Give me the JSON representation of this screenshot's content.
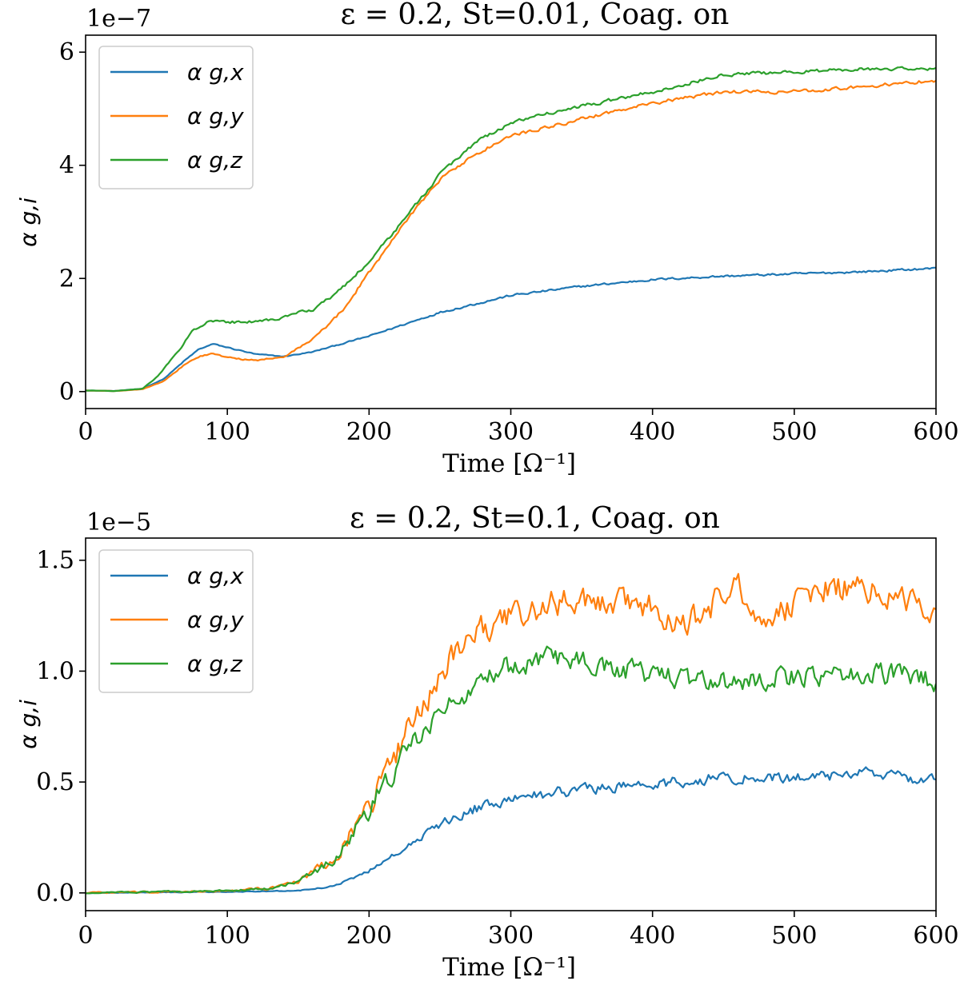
{
  "chart_data": [
    {
      "type": "line",
      "title": "ε = 0.2, St=0.01, Coag. on",
      "xlabel": "Time [Ω⁻¹]",
      "ylabel": "α g,i",
      "offset_text": "1e−7",
      "xlim": [
        0,
        600
      ],
      "ylim": [
        -0.3,
        6.3
      ],
      "xticks": [
        0,
        100,
        200,
        300,
        400,
        500,
        600
      ],
      "xtick_labels": [
        "0",
        "100",
        "200",
        "300",
        "400",
        "500",
        "600"
      ],
      "yticks": [
        0,
        2,
        4,
        6
      ],
      "ytick_labels": [
        "0",
        "2",
        "4",
        "6"
      ],
      "legend": "upper-left",
      "series": [
        {
          "name": "α g,x",
          "color": "#1f77b4",
          "noise": 0.03,
          "x": [
            0,
            20,
            40,
            55,
            70,
            80,
            90,
            100,
            120,
            140,
            160,
            200,
            250,
            300,
            350,
            400,
            450,
            500,
            550,
            600
          ],
          "y": [
            0.02,
            0.01,
            0.05,
            0.22,
            0.55,
            0.75,
            0.84,
            0.78,
            0.66,
            0.62,
            0.7,
            0.98,
            1.4,
            1.7,
            1.86,
            1.98,
            2.04,
            2.08,
            2.12,
            2.18
          ]
        },
        {
          "name": "α g,y",
          "color": "#ff7f0e",
          "noise": 0.05,
          "x": [
            0,
            20,
            40,
            55,
            70,
            80,
            90,
            100,
            120,
            140,
            160,
            180,
            200,
            225,
            250,
            275,
            300,
            350,
            400,
            450,
            500,
            550,
            600
          ],
          "y": [
            0.02,
            0.01,
            0.04,
            0.18,
            0.48,
            0.62,
            0.67,
            0.6,
            0.55,
            0.62,
            0.92,
            1.4,
            2.1,
            3.0,
            3.75,
            4.2,
            4.52,
            4.82,
            5.1,
            5.3,
            5.3,
            5.4,
            5.5
          ]
        },
        {
          "name": "α g,z",
          "color": "#2ca02c",
          "noise": 0.05,
          "x": [
            0,
            20,
            40,
            50,
            65,
            75,
            85,
            95,
            110,
            130,
            160,
            180,
            200,
            225,
            250,
            275,
            300,
            350,
            400,
            450,
            500,
            550,
            600
          ],
          "y": [
            0.02,
            0.01,
            0.05,
            0.25,
            0.7,
            1.05,
            1.22,
            1.24,
            1.22,
            1.26,
            1.45,
            1.8,
            2.3,
            3.05,
            3.85,
            4.4,
            4.75,
            5.05,
            5.3,
            5.6,
            5.65,
            5.7,
            5.72
          ]
        }
      ]
    },
    {
      "type": "line",
      "title": "ε = 0.2, St=0.1, Coag. on",
      "xlabel": "Time [Ω⁻¹]",
      "ylabel": "α g,i",
      "offset_text": "1e−5",
      "xlim": [
        0,
        600
      ],
      "ylim": [
        -0.08,
        1.6
      ],
      "xticks": [
        0,
        100,
        200,
        300,
        400,
        500,
        600
      ],
      "xtick_labels": [
        "0",
        "100",
        "200",
        "300",
        "400",
        "500",
        "600"
      ],
      "yticks": [
        0.0,
        0.5,
        1.0,
        1.5
      ],
      "ytick_labels": [
        "0.0",
        "0.5",
        "1.0",
        "1.5"
      ],
      "legend": "upper-left",
      "series": [
        {
          "name": "α g,x",
          "color": "#1f77b4",
          "noise": 0.04,
          "x": [
            0,
            100,
            150,
            175,
            200,
            225,
            250,
            275,
            300,
            350,
            400,
            450,
            500,
            550,
            600
          ],
          "y": [
            0.0,
            0.005,
            0.01,
            0.03,
            0.1,
            0.2,
            0.31,
            0.38,
            0.42,
            0.47,
            0.49,
            0.52,
            0.52,
            0.54,
            0.5
          ]
        },
        {
          "name": "α g,y",
          "color": "#ff7f0e",
          "noise": 0.1,
          "x": [
            0,
            100,
            130,
            150,
            175,
            200,
            225,
            250,
            270,
            290,
            310,
            350,
            400,
            420,
            460,
            480,
            520,
            560,
            600
          ],
          "y": [
            0.0,
            0.01,
            0.02,
            0.05,
            0.15,
            0.4,
            0.7,
            0.98,
            1.15,
            1.22,
            1.28,
            1.33,
            1.3,
            1.2,
            1.38,
            1.22,
            1.38,
            1.36,
            1.25
          ]
        },
        {
          "name": "α g,z",
          "color": "#2ca02c",
          "noise": 0.08,
          "x": [
            0,
            100,
            130,
            150,
            175,
            200,
            225,
            250,
            270,
            290,
            320,
            350,
            400,
            450,
            500,
            550,
            600
          ],
          "y": [
            0.0,
            0.01,
            0.02,
            0.05,
            0.15,
            0.38,
            0.62,
            0.82,
            0.92,
            1.0,
            1.05,
            1.05,
            0.98,
            0.96,
            0.98,
            1.0,
            0.95
          ]
        }
      ]
    }
  ]
}
